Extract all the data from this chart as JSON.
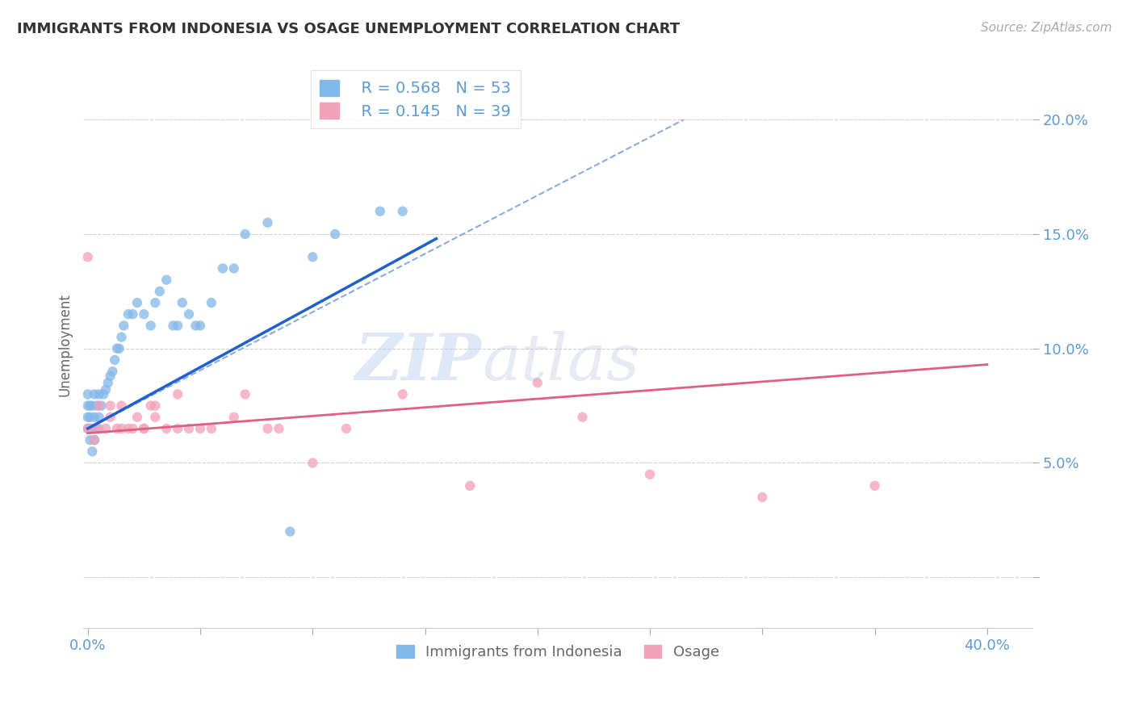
{
  "title": "IMMIGRANTS FROM INDONESIA VS OSAGE UNEMPLOYMENT CORRELATION CHART",
  "source": "Source: ZipAtlas.com",
  "ylabel": "Unemployment",
  "y_ticks": [
    0.0,
    0.05,
    0.1,
    0.15,
    0.2
  ],
  "y_tick_labels": [
    "",
    "5.0%",
    "10.0%",
    "15.0%",
    "20.0%"
  ],
  "x_lim": [
    -0.002,
    0.42
  ],
  "y_lim": [
    -0.022,
    0.225
  ],
  "legend_r1": "R = 0.568",
  "legend_n1": "N = 53",
  "legend_r2": "R = 0.145",
  "legend_n2": "N = 39",
  "color_blue": "#82B8E8",
  "color_pink": "#F4A0B8",
  "color_trend_blue": "#2060CC",
  "color_trend_pink": "#E06080",
  "color_dashed": "#8AACDC",
  "watermark_zip": "ZIP",
  "watermark_atlas": "atlas",
  "blue_points_x": [
    0.0,
    0.0,
    0.0,
    0.0,
    0.001,
    0.001,
    0.001,
    0.002,
    0.002,
    0.003,
    0.003,
    0.004,
    0.005,
    0.005,
    0.006,
    0.007,
    0.008,
    0.009,
    0.01,
    0.011,
    0.012,
    0.013,
    0.014,
    0.015,
    0.016,
    0.018,
    0.02,
    0.022,
    0.025,
    0.028,
    0.03,
    0.032,
    0.035,
    0.038,
    0.04,
    0.042,
    0.045,
    0.048,
    0.05,
    0.055,
    0.06,
    0.065,
    0.07,
    0.08,
    0.09,
    0.1,
    0.11,
    0.13,
    0.14,
    0.001,
    0.002,
    0.003,
    0.004
  ],
  "blue_points_y": [
    0.065,
    0.07,
    0.075,
    0.08,
    0.065,
    0.07,
    0.075,
    0.065,
    0.075,
    0.07,
    0.08,
    0.075,
    0.07,
    0.08,
    0.075,
    0.08,
    0.082,
    0.085,
    0.088,
    0.09,
    0.095,
    0.1,
    0.1,
    0.105,
    0.11,
    0.115,
    0.115,
    0.12,
    0.115,
    0.11,
    0.12,
    0.125,
    0.13,
    0.11,
    0.11,
    0.12,
    0.115,
    0.11,
    0.11,
    0.12,
    0.135,
    0.135,
    0.15,
    0.155,
    0.02,
    0.14,
    0.15,
    0.16,
    0.16,
    0.06,
    0.055,
    0.06,
    0.065
  ],
  "pink_points_x": [
    0.0,
    0.0,
    0.001,
    0.003,
    0.005,
    0.008,
    0.01,
    0.013,
    0.015,
    0.018,
    0.022,
    0.025,
    0.028,
    0.03,
    0.035,
    0.04,
    0.045,
    0.055,
    0.065,
    0.08,
    0.1,
    0.115,
    0.14,
    0.17,
    0.2,
    0.22,
    0.25,
    0.3,
    0.35,
    0.005,
    0.01,
    0.015,
    0.02,
    0.025,
    0.03,
    0.04,
    0.05,
    0.07,
    0.085
  ],
  "pink_points_y": [
    0.14,
    0.065,
    0.065,
    0.06,
    0.065,
    0.065,
    0.07,
    0.065,
    0.065,
    0.065,
    0.07,
    0.065,
    0.075,
    0.075,
    0.065,
    0.08,
    0.065,
    0.065,
    0.07,
    0.065,
    0.05,
    0.065,
    0.08,
    0.04,
    0.085,
    0.07,
    0.045,
    0.035,
    0.04,
    0.075,
    0.075,
    0.075,
    0.065,
    0.065,
    0.07,
    0.065,
    0.065,
    0.08,
    0.065
  ],
  "blue_trend_x": [
    0.0,
    0.155
  ],
  "blue_trend_y": [
    0.065,
    0.148
  ],
  "pink_trend_x": [
    0.0,
    0.4
  ],
  "pink_trend_y": [
    0.063,
    0.093
  ],
  "dash_line_x": [
    0.0,
    0.265
  ],
  "dash_line_y": [
    0.065,
    0.2
  ]
}
